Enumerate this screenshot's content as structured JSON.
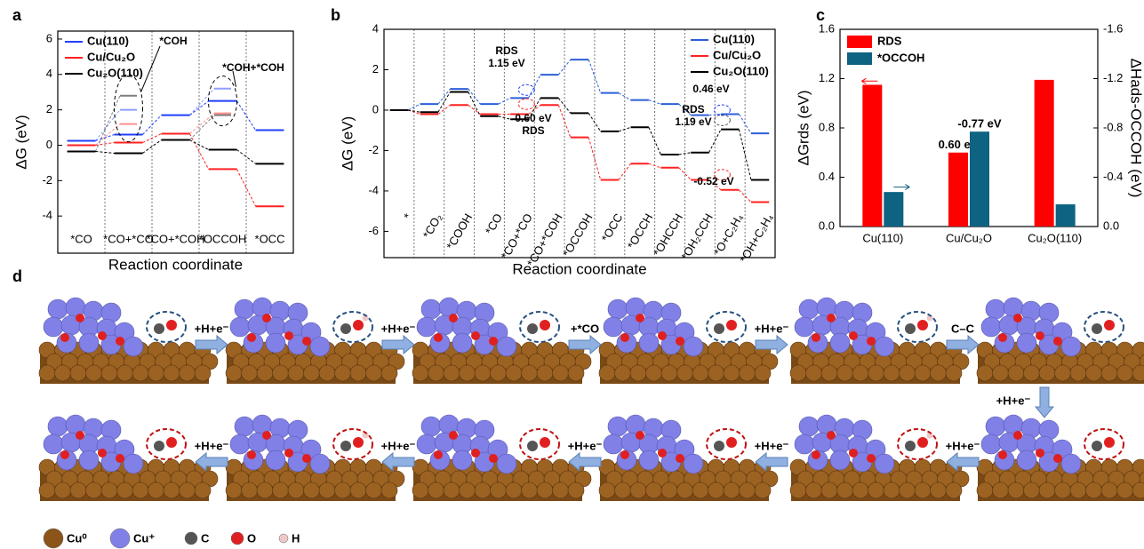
{
  "chart_data": [
    {
      "type": "energy",
      "panel": "a",
      "y_label": "ΔG (eV)",
      "x_label": "Reaction coordinate",
      "categories": [
        "*CO",
        "*CO+*CO",
        "*CO+*COH",
        "*OCCOH",
        "*OCC"
      ],
      "series": [
        {
          "name": "Cu(110)",
          "color": "#1f3fff",
          "values": [
            0.25,
            0.6,
            1.7,
            2.5,
            0.85
          ],
          "ts_values": [
            null,
            2.0,
            null,
            3.2,
            null
          ]
        },
        {
          "name": "Cu/Cu₂O",
          "color": "#ff2020",
          "values": [
            0.0,
            0.15,
            0.65,
            -1.35,
            -3.45
          ],
          "ts_values": [
            null,
            1.2,
            null,
            1.8,
            null
          ]
        },
        {
          "name": "Cu₂O(110)",
          "color": "#000000",
          "values": [
            -0.35,
            -0.45,
            0.3,
            -0.25,
            -1.05
          ],
          "ts_values": [
            null,
            2.8,
            null,
            1.7,
            null
          ]
        }
      ],
      "annotations": [
        {
          "lines": [
            "*COH"
          ],
          "color": "#000000"
        },
        {
          "lines": [
            "*COH+*COH"
          ],
          "color": "#000000"
        }
      ],
      "ylim": [
        -6.1,
        6.45
      ],
      "yticks": [
        -4,
        -2,
        0,
        2,
        4,
        6
      ],
      "legend": "upper-left"
    },
    {
      "type": "energy",
      "panel": "b",
      "y_label": "ΔG (eV)",
      "x_label": "Reaction coordinate",
      "categories": [
        "*",
        "*CO₂",
        "*COOH",
        "*CO",
        "*CO+*CO",
        "*CO+*COH",
        "*OCCOH",
        "*OCC",
        "*OCCH",
        "*OHCCH",
        "*OH₂CCH",
        "*O+C₂H₄",
        "*OH+C₂H₄"
      ],
      "series": [
        {
          "name": "Cu(110)",
          "color": "#2b5fd9",
          "values": [
            0,
            0.3,
            1.05,
            0.3,
            0.6,
            1.75,
            2.5,
            0.85,
            0.5,
            0.3,
            -0.25,
            -0.2,
            -1.15
          ]
        },
        {
          "name": "Cu/Cu₂O",
          "color": "#ff2020",
          "values": [
            0,
            -0.2,
            0.25,
            -0.2,
            -0.2,
            0.25,
            -1.35,
            -3.45,
            -2.65,
            -2.85,
            -3.45,
            -3.95,
            -4.55
          ]
        },
        {
          "name": "Cu₂O(110)",
          "color": "#000000",
          "values": [
            0,
            -0.1,
            0.9,
            -0.3,
            -0.45,
            0.6,
            -0.15,
            -1.05,
            -0.85,
            -2.2,
            -2.1,
            -0.95,
            -3.45
          ]
        }
      ],
      "annotations": [
        {
          "lines": [
            "RDS",
            "1.15 eV"
          ],
          "color": "#1f3fff"
        },
        {
          "lines": [
            "0.60 eV",
            "RDS"
          ],
          "color": "#ff2020"
        },
        {
          "lines": [
            "RDS",
            "1.19 eV"
          ],
          "color": "#000000"
        },
        {
          "lines": [
            "0.46 eV"
          ],
          "color": "#1f3fff"
        },
        {
          "lines": [
            "-0.52 eV"
          ],
          "color": "#ff2020"
        }
      ],
      "ylim": [
        -7.3,
        4
      ],
      "yticks": [
        -6,
        -4,
        -2,
        0,
        2,
        4
      ],
      "legend": "upper-right"
    },
    {
      "type": "bar",
      "panel": "c",
      "y_label": "ΔGrds (eV)",
      "y2_label": "ΔHads-OCCOH (eV)",
      "categories": [
        "Cu(110)",
        "Cu/Cu₂O",
        "Cu₂O(110)"
      ],
      "series": [
        {
          "name": "RDS",
          "color": "#ff0000",
          "values": [
            1.15,
            0.6,
            1.19
          ],
          "value_labels": [
            null,
            "0.60 eV",
            null
          ]
        },
        {
          "name": "*OCCOH",
          "color": "#0e6282",
          "axis": "y2",
          "values": [
            -0.28,
            -0.77,
            -0.18
          ],
          "value_labels": [
            null,
            "-0.77 eV",
            null
          ]
        }
      ],
      "ylim": [
        0,
        1.6
      ],
      "yticks": [
        {
          "value": 0,
          "label": "0.0"
        },
        0.4,
        0.8,
        1.2,
        1.6
      ],
      "y2lim": [
        0,
        -1.6
      ],
      "y2ticks": [
        {
          "value": 0,
          "label": "0.0"
        },
        -0.4,
        -0.8,
        -1.2,
        -1.6
      ],
      "legend": "upper-left"
    }
  ],
  "scheme": {
    "panel": "d",
    "arrows": [
      "+H+e⁻",
      "+H+e⁻",
      "+*CO",
      "+H+e⁻",
      "C–C",
      "+H+e⁻",
      "+H+e⁻",
      "+H+e⁻",
      "+H+e⁻",
      "+H+e⁻",
      "+H+e⁻"
    ],
    "legend": [
      "Cu⁰",
      "Cu⁺",
      "C",
      "O",
      "H"
    ]
  }
}
